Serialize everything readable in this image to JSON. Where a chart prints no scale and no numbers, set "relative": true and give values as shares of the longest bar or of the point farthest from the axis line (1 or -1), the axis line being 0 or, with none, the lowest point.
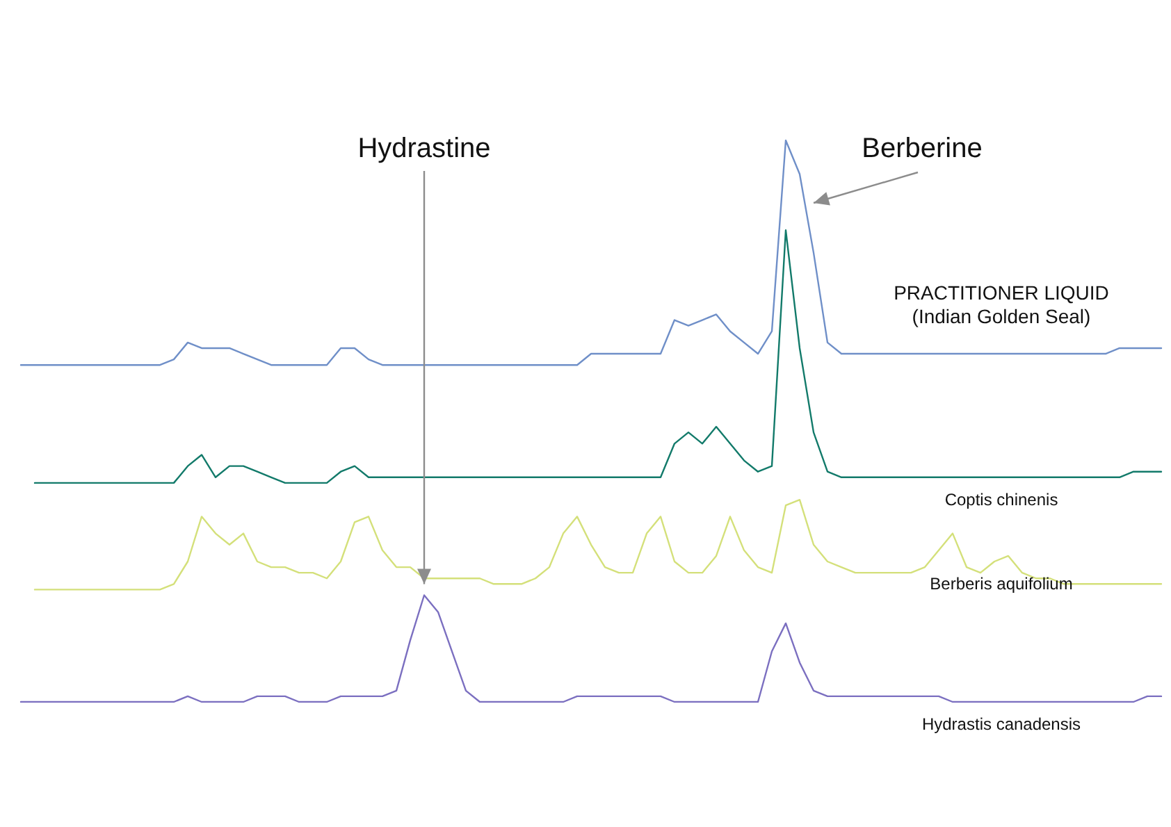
{
  "chart_data": {
    "type": "line",
    "relative": true,
    "legend": false,
    "marker": "none",
    "line_style": "solid",
    "annotations": [
      "Hydrastine",
      "Berberine"
    ],
    "categories": [
      null,
      null,
      null,
      null,
      null,
      null,
      null,
      null,
      null,
      null,
      null,
      null,
      null,
      null,
      null,
      null,
      null,
      null,
      null,
      null,
      null,
      null,
      null,
      null,
      null,
      null,
      null,
      null,
      null,
      null,
      null,
      null,
      null,
      null,
      null,
      null,
      null,
      null,
      null,
      null,
      null,
      null,
      null,
      null,
      null,
      null,
      null,
      null,
      null,
      null,
      null,
      null,
      null,
      null,
      null,
      null,
      null,
      null,
      null,
      null,
      null,
      null,
      null,
      null,
      null,
      null,
      null,
      null,
      null,
      null,
      null,
      null,
      null,
      null,
      null,
      null,
      null,
      null,
      null,
      null,
      null,
      null,
      null
    ],
    "series": [
      {
        "name": "PRACTITIONER LIQUID (Indian Golden Seal)",
        "color": "#6f8fc8",
        "values": [
          0.6,
          0.6,
          0.6,
          0.6,
          0.6,
          0.6,
          0.6,
          0.6,
          0.6,
          0.6,
          0.6,
          0.61,
          0.64,
          0.63,
          0.63,
          0.63,
          0.62,
          0.61,
          0.6,
          0.6,
          0.6,
          0.6,
          0.6,
          0.63,
          0.63,
          0.61,
          0.6,
          0.6,
          0.6,
          0.6,
          0.6,
          0.6,
          0.6,
          0.6,
          0.6,
          0.6,
          0.6,
          0.6,
          0.6,
          0.6,
          0.6,
          0.62,
          0.62,
          0.62,
          0.62,
          0.62,
          0.62,
          0.68,
          0.67,
          0.68,
          0.69,
          0.66,
          0.64,
          0.62,
          0.66,
          1,
          0.94,
          0.8,
          0.64,
          0.62,
          0.62,
          0.62,
          0.62,
          0.62,
          0.62,
          0.62,
          0.62,
          0.62,
          0.62,
          0.62,
          0.62,
          0.62,
          0.62,
          0.62,
          0.62,
          0.62,
          0.62,
          0.62,
          0.62,
          0.63,
          0.63,
          0.63,
          0.63
        ]
      },
      {
        "name": "Coptis chinenis",
        "color": "#127a6a",
        "values": [
          null,
          0.39,
          0.39,
          0.39,
          0.39,
          0.39,
          0.39,
          0.39,
          0.39,
          0.39,
          0.39,
          0.39,
          0.42,
          0.44,
          0.4,
          0.42,
          0.42,
          0.41,
          0.4,
          0.39,
          0.39,
          0.39,
          0.39,
          0.41,
          0.42,
          0.4,
          0.4,
          0.4,
          0.4,
          0.4,
          0.4,
          0.4,
          0.4,
          0.4,
          0.4,
          0.4,
          0.4,
          0.4,
          0.4,
          0.4,
          0.4,
          0.4,
          0.4,
          0.4,
          0.4,
          0.4,
          0.4,
          0.46,
          0.48,
          0.46,
          0.49,
          0.46,
          0.43,
          0.41,
          0.42,
          0.84,
          0.63,
          0.48,
          0.41,
          0.4,
          0.4,
          0.4,
          0.4,
          0.4,
          0.4,
          0.4,
          0.4,
          0.4,
          0.4,
          0.4,
          0.4,
          0.4,
          0.4,
          0.4,
          0.4,
          0.4,
          0.4,
          0.4,
          0.4,
          0.4,
          0.41,
          0.41,
          0.41
        ]
      },
      {
        "name": "Berberis aquifolium",
        "color": "#d4e07a",
        "values": [
          null,
          0.2,
          0.2,
          0.2,
          0.2,
          0.2,
          0.2,
          0.2,
          0.2,
          0.2,
          0.2,
          0.21,
          0.25,
          0.33,
          0.3,
          0.28,
          0.3,
          0.25,
          0.24,
          0.24,
          0.23,
          0.23,
          0.22,
          0.25,
          0.32,
          0.33,
          0.27,
          0.24,
          0.24,
          0.22,
          0.22,
          0.22,
          0.22,
          0.22,
          0.21,
          0.21,
          0.21,
          0.22,
          0.24,
          0.3,
          0.33,
          0.28,
          0.24,
          0.23,
          0.23,
          0.3,
          0.33,
          0.25,
          0.23,
          0.23,
          0.26,
          0.33,
          0.27,
          0.24,
          0.23,
          0.35,
          0.36,
          0.28,
          0.25,
          0.24,
          0.23,
          0.23,
          0.23,
          0.23,
          0.23,
          0.24,
          0.27,
          0.3,
          0.24,
          0.23,
          0.25,
          0.26,
          0.23,
          0.22,
          0.22,
          0.21,
          0.21,
          0.21,
          0.21,
          0.21,
          0.21,
          0.21,
          0.21
        ]
      },
      {
        "name": "Hydrastis canadensis",
        "color": "#7b6fc0",
        "values": [
          0,
          0,
          0,
          0,
          0,
          0,
          0,
          0,
          0,
          0,
          0,
          0,
          0.01,
          0,
          0,
          0,
          0,
          0.01,
          0.01,
          0.01,
          0,
          0,
          0,
          0.01,
          0.01,
          0.01,
          0.01,
          0.02,
          0.11,
          0.19,
          0.16,
          0.09,
          0.02,
          0,
          0,
          0,
          0,
          0,
          0,
          0,
          0.01,
          0.01,
          0.01,
          0.01,
          0.01,
          0.01,
          0.01,
          0,
          0,
          0,
          0,
          0,
          0,
          0,
          0.09,
          0.14,
          0.07,
          0.02,
          0.01,
          0.01,
          0.01,
          0.01,
          0.01,
          0.01,
          0.01,
          0.01,
          0.01,
          0,
          0,
          0,
          0,
          0,
          0,
          0,
          0,
          0,
          0,
          0,
          0,
          0,
          0,
          0.01,
          0.01
        ]
      }
    ]
  }
}
